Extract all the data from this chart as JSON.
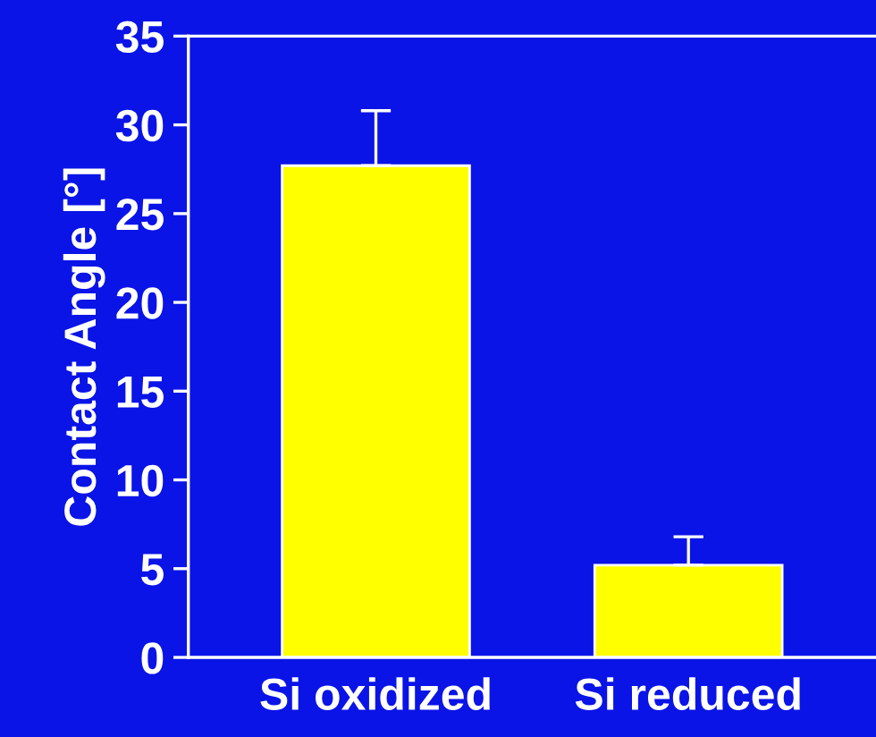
{
  "chart_data": {
    "type": "bar",
    "ylabel": "Contact Angle [°]",
    "categories": [
      "Si oxidized",
      "Si reduced"
    ],
    "values": [
      27.7,
      5.2
    ],
    "color": "#ffff00",
    "errors": [
      [
        27.7,
        30.8
      ],
      [
        5.2,
        6.8
      ]
    ],
    "ylim": [
      0,
      35
    ],
    "yticks": [
      0,
      5,
      10,
      15,
      20,
      25,
      30,
      35
    ],
    "grid": false
  }
}
